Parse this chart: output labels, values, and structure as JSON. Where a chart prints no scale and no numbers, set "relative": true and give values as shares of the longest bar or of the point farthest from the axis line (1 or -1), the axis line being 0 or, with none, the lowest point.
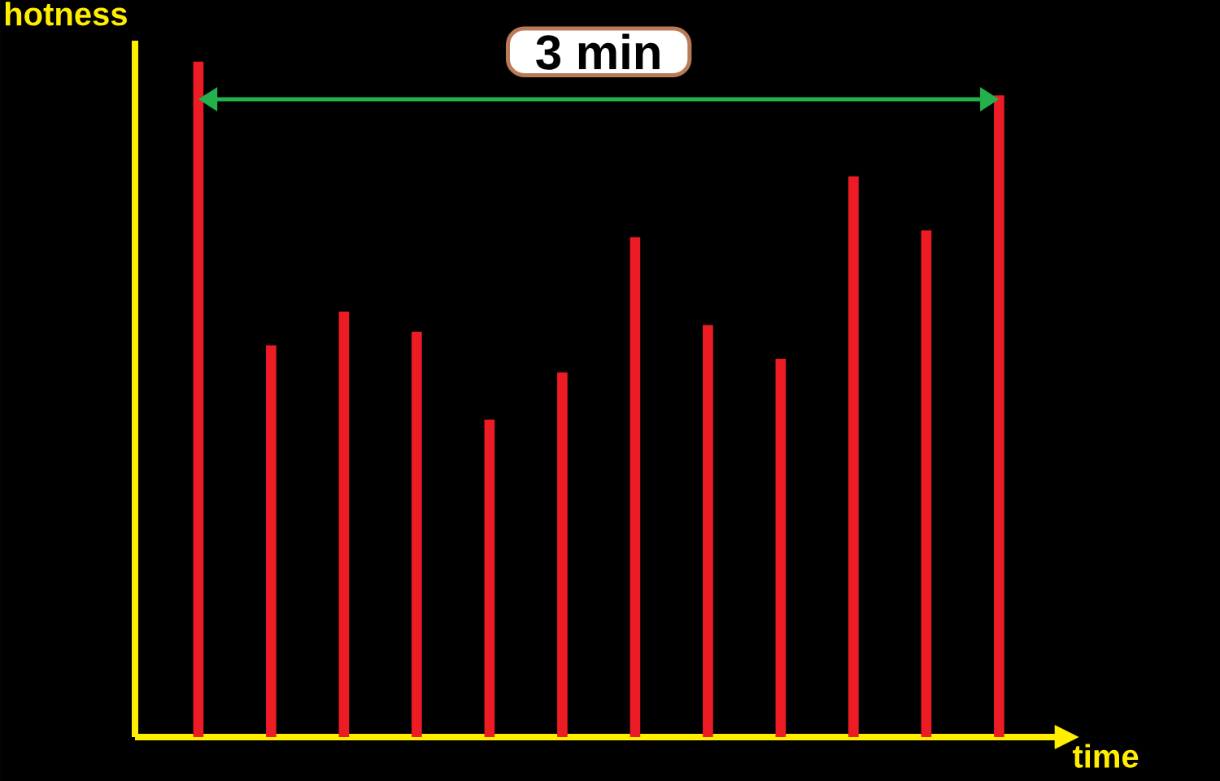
{
  "chart_data": {
    "type": "bar",
    "relative": true,
    "xlabel": "time",
    "ylabel": "hotness",
    "annotations": [
      "3 min"
    ],
    "categories": [
      null,
      null,
      null,
      null,
      null,
      null,
      null,
      null,
      null,
      null,
      null,
      null
    ],
    "values": [
      1,
      0.58,
      0.63,
      0.6,
      0.47,
      0.54,
      0.74,
      0.61,
      0.56,
      0.83,
      0.75,
      0.95
    ],
    "color": "#ed1c24"
  }
}
